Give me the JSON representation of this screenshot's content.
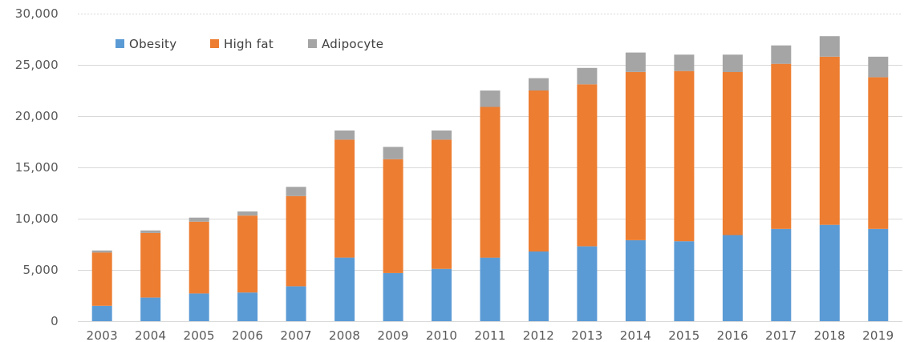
{
  "chart_data": {
    "type": "bar",
    "stacked": true,
    "categories": [
      "2003",
      "2004",
      "2005",
      "2006",
      "2007",
      "2008",
      "2009",
      "2010",
      "2011",
      "2012",
      "2013",
      "2014",
      "2015",
      "2016",
      "2017",
      "2018",
      "2019"
    ],
    "series": [
      {
        "name": "Obesity",
        "color": "#5b9bd5",
        "values": [
          1500,
          2300,
          2700,
          2800,
          3400,
          6200,
          4700,
          5100,
          6200,
          6800,
          7300,
          7900,
          7800,
          8400,
          9000,
          9400,
          9000
        ]
      },
      {
        "name": "High fat",
        "color": "#ed7d31",
        "values": [
          5200,
          6300,
          7000,
          7500,
          8800,
          11500,
          11100,
          12600,
          14700,
          15700,
          15800,
          16400,
          16600,
          15900,
          16100,
          16400,
          14800
        ]
      },
      {
        "name": "Adipocyte",
        "color": "#a5a5a5",
        "values": [
          200,
          250,
          400,
          400,
          900,
          900,
          1200,
          900,
          1600,
          1200,
          1600,
          1900,
          1600,
          1700,
          1800,
          2000,
          2000
        ]
      }
    ],
    "yticks": [
      "0",
      "5,000",
      "10,000",
      "15,000",
      "20,000",
      "25,000",
      "30,000"
    ],
    "ylim": [
      0,
      30000
    ],
    "grid": true,
    "legend_position": "top-left"
  }
}
